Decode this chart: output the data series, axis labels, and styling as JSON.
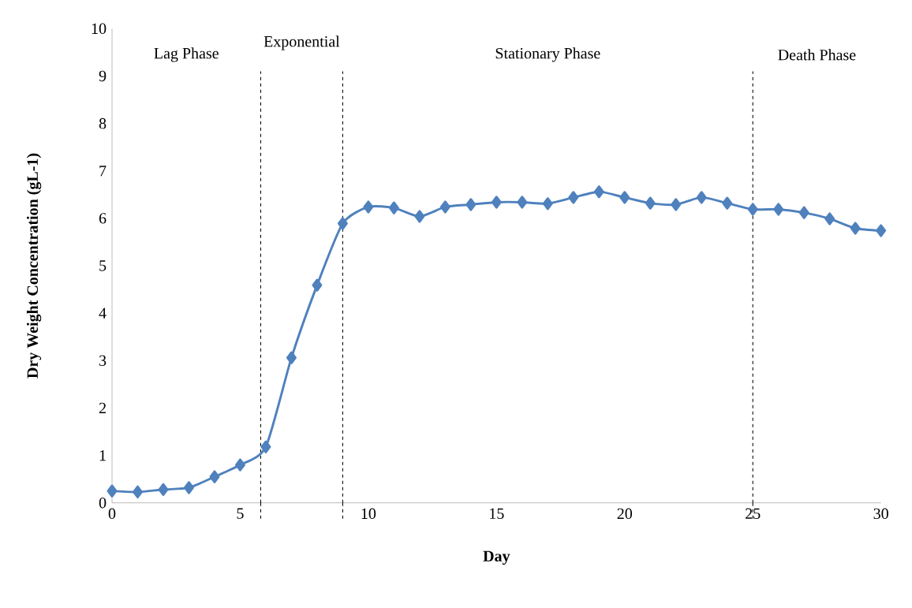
{
  "chart_data": {
    "type": "line",
    "xlabel": "Day",
    "ylabel": "Dry Weight Concentration (gL-1)",
    "x": [
      0,
      1,
      2,
      3,
      4,
      5,
      6,
      7,
      8,
      9,
      10,
      11,
      12,
      13,
      14,
      15,
      16,
      17,
      18,
      19,
      20,
      21,
      22,
      23,
      24,
      25,
      26,
      27,
      28,
      29,
      30
    ],
    "series": [
      {
        "color": "#4f81bd",
        "values": [
          0.25,
          0.23,
          0.28,
          0.32,
          0.55,
          0.8,
          1.18,
          3.06,
          4.59,
          5.89,
          6.24,
          6.22,
          6.04,
          6.24,
          6.29,
          6.34,
          6.34,
          6.31,
          6.44,
          6.56,
          6.44,
          6.32,
          6.29,
          6.44,
          6.32,
          6.19,
          6.19,
          6.12,
          5.99,
          5.79,
          5.74
        ]
      }
    ],
    "xlim": [
      0,
      30
    ],
    "xticks": [
      0,
      5,
      10,
      15,
      20,
      25,
      30
    ],
    "ylim": [
      0,
      10
    ],
    "yticks": [
      0,
      1,
      2,
      3,
      4,
      5,
      6,
      7,
      8,
      9,
      10
    ],
    "ref_lines": [
      {
        "axis": "x",
        "value": 5.8,
        "color": "#000000",
        "line_style": "dashed"
      },
      {
        "axis": "x",
        "value": 9,
        "color": "#000000",
        "line_style": "dashed"
      },
      {
        "axis": "x",
        "value": 25,
        "color": "#000000",
        "line_style": "dashed"
      }
    ],
    "annotations": [
      "Lag Phase",
      "Exponential",
      "Stationary Phase",
      "Death Phase"
    ],
    "marker": "diamond",
    "line_style": "solid"
  }
}
